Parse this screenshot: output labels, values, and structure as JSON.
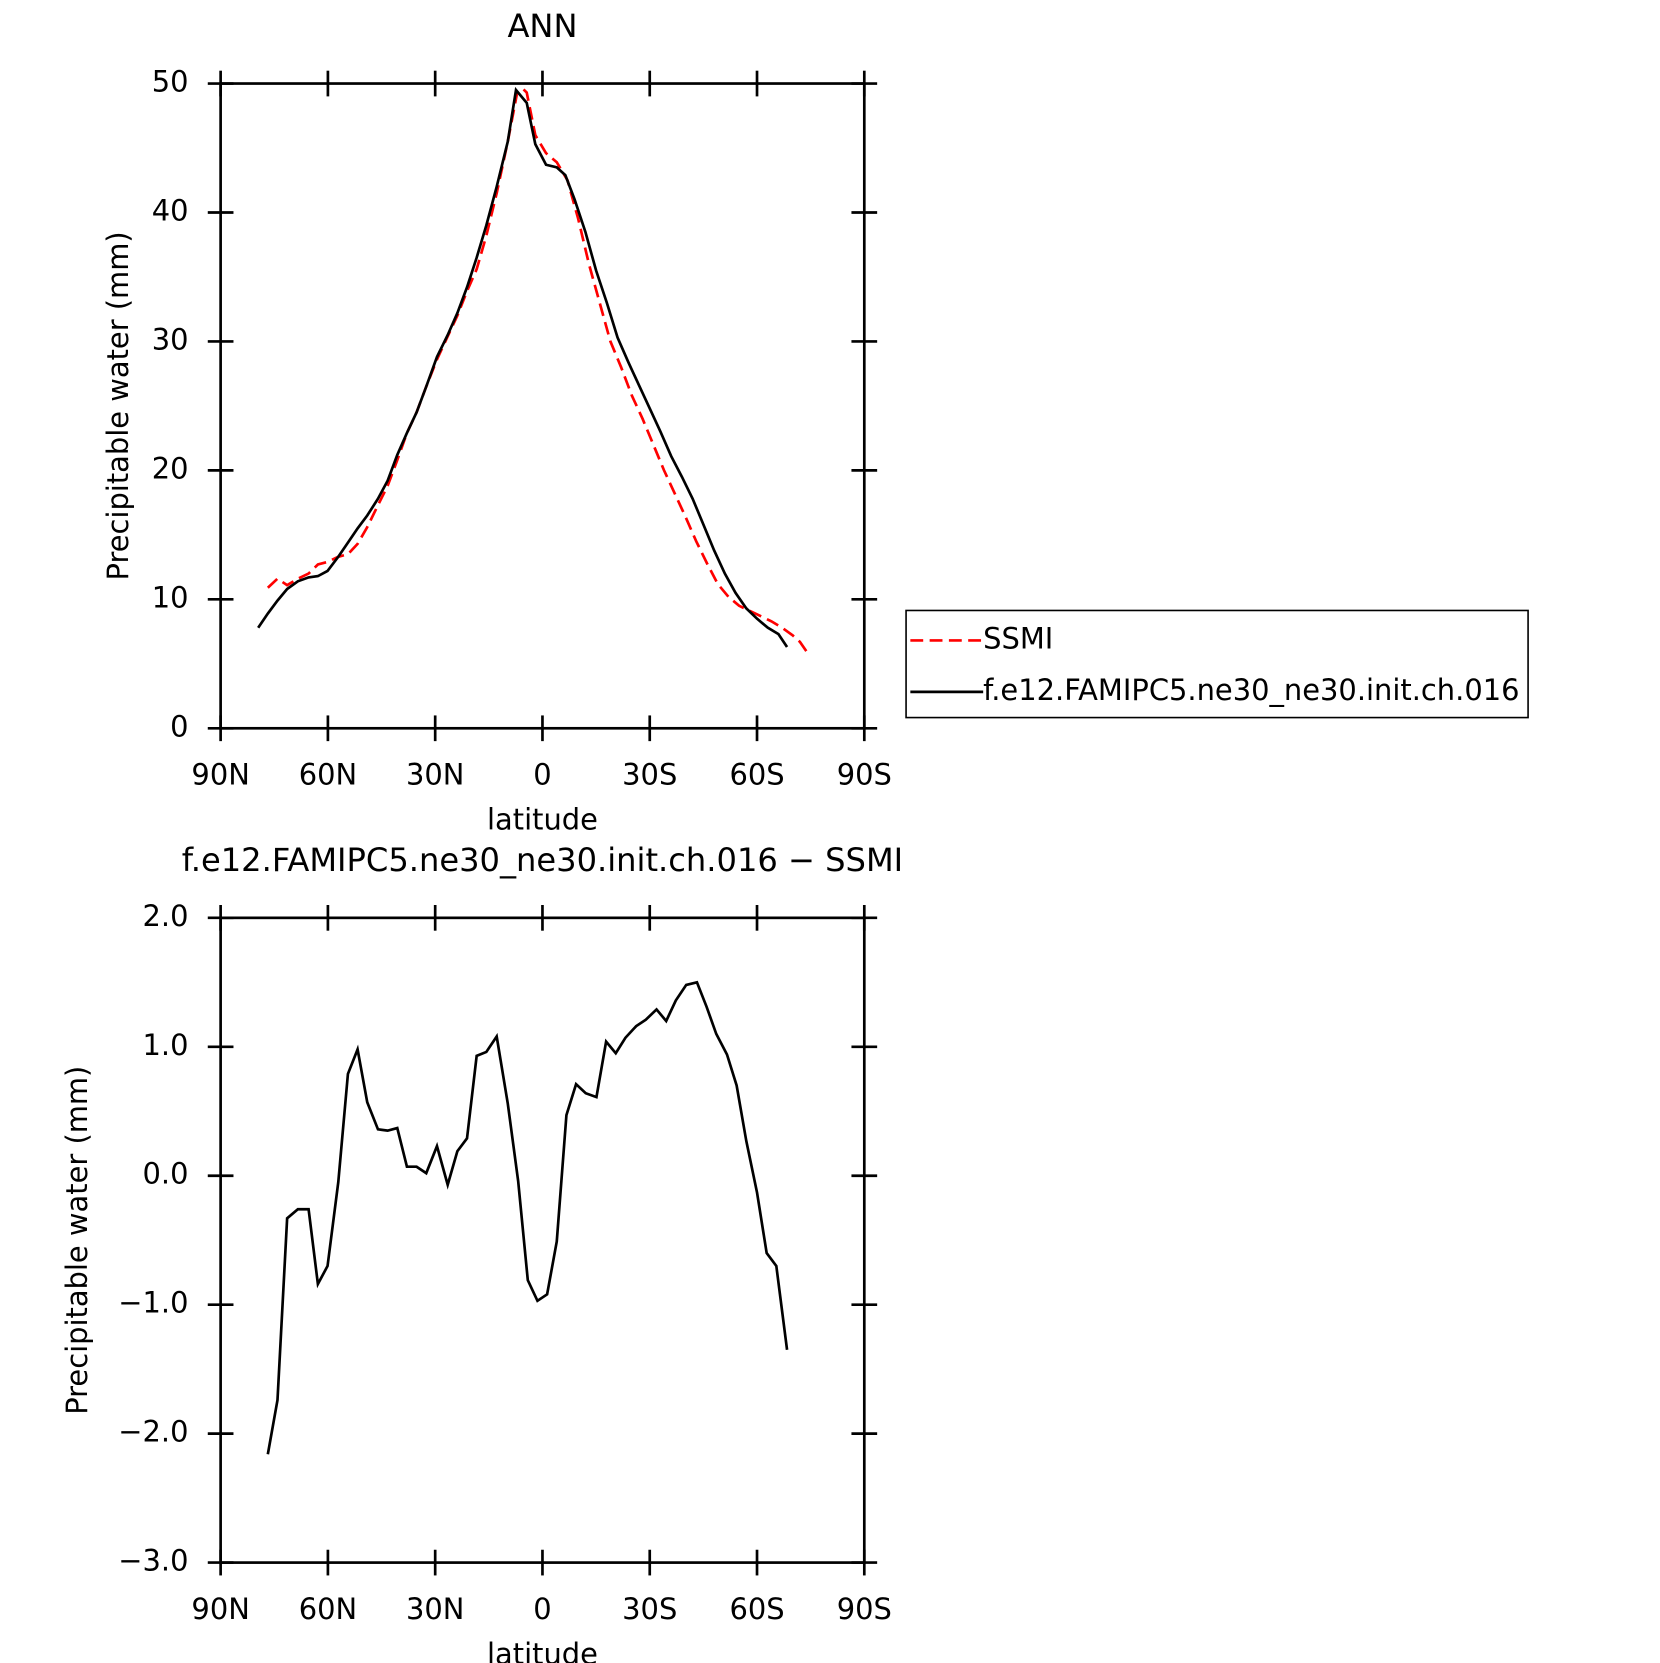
{
  "chart_data": [
    {
      "type": "line",
      "title": "ANN",
      "xlabel": "latitude",
      "ylabel": "Precipitable water (mm)",
      "xlim": [
        90,
        -90
      ],
      "xticks": [
        {
          "value": 90,
          "label": "90N"
        },
        {
          "value": 60,
          "label": "60N"
        },
        {
          "value": 30,
          "label": "30N"
        },
        0,
        {
          "value": -30,
          "label": "30S"
        },
        {
          "value": -60,
          "label": "60S"
        },
        {
          "value": -90,
          "label": "90S"
        }
      ],
      "ylim": [
        0,
        50
      ],
      "yticks": [
        0,
        10,
        20,
        30,
        40,
        50
      ],
      "legend": "right",
      "series": [
        {
          "name": "SSMI",
          "color": "#ff0000",
          "style": "dashed",
          "x": [
            76.8,
            74.1,
            71.4,
            68.4,
            65.4,
            62.8,
            60.1,
            57.1,
            54.4,
            51.7,
            49,
            46,
            43.3,
            40.6,
            37.9,
            35.2,
            32.5,
            29.5,
            26.5,
            23.8,
            21.1,
            18.4,
            15.7,
            12.8,
            9.7,
            7,
            5.5,
            4.4,
            2,
            -1,
            -4,
            -7,
            -10,
            -13,
            -16,
            -19,
            -22,
            -25,
            -28,
            -31,
            -34,
            -37,
            -40,
            -43,
            -46,
            -49,
            -52,
            -55,
            -58,
            -61,
            -64,
            -67,
            -70,
            -72,
            -74
          ],
          "values": [
            10.9,
            11.6,
            11.1,
            11.6,
            12.0,
            12.7,
            12.9,
            13.3,
            13.5,
            14.3,
            15.6,
            17.3,
            18.8,
            20.8,
            22.9,
            24.5,
            26.5,
            28.6,
            30.4,
            32,
            33.9,
            35.6,
            38.2,
            41.5,
            45.5,
            49.4,
            49.6,
            49.3,
            46,
            44.6,
            43.9,
            42.5,
            39.5,
            36,
            33,
            30,
            28,
            25.8,
            24,
            22,
            20,
            18.2,
            16.4,
            14.5,
            12.8,
            11.2,
            10.2,
            9.5,
            9.1,
            8.7,
            8.3,
            7.8,
            7.2,
            6.7,
            5.9
          ]
        },
        {
          "name": "f.e12.FAMIPC5.ne30_ne30.init.ch.016",
          "color": "#000000",
          "style": "solid",
          "x": [
            79.5,
            76.8,
            74.1,
            71.4,
            68.4,
            65.4,
            62.8,
            60.1,
            57.1,
            54.4,
            51.7,
            49,
            46,
            43.3,
            40.6,
            37.9,
            35.2,
            32.5,
            29.5,
            26.5,
            23.8,
            21.1,
            18.4,
            15.7,
            12.8,
            9.7,
            7.4,
            4.4,
            2,
            -1,
            -4,
            -6.4,
            -9,
            -12,
            -15,
            -18,
            -21,
            -24,
            -27,
            -30,
            -33,
            -36,
            -39,
            -42,
            -45,
            -48,
            -51,
            -54,
            -57,
            -60,
            -63,
            -66,
            -68.4
          ],
          "values": [
            7.8,
            8.9,
            9.9,
            10.8,
            11.4,
            11.7,
            11.8,
            12.2,
            13.3,
            14.4,
            15.5,
            16.5,
            17.8,
            19.2,
            21.2,
            22.9,
            24.5,
            26.5,
            28.8,
            30.5,
            32.2,
            34.2,
            36.5,
            39,
            42,
            45.5,
            49.5,
            48.5,
            45.3,
            43.7,
            43.5,
            42.9,
            41,
            38.5,
            35.5,
            33,
            30.3,
            28.4,
            26.6,
            24.8,
            23,
            21.1,
            19.5,
            17.8,
            15.8,
            13.8,
            12,
            10.5,
            9.3,
            8.5,
            7.8,
            7.3,
            6.3
          ]
        }
      ]
    },
    {
      "type": "line",
      "title": "f.e12.FAMIPC5.ne30_ne30.init.ch.016 − SSMI",
      "xlabel": "latitude",
      "ylabel": "Precipitable water (mm)",
      "xlim": [
        90,
        -90
      ],
      "xticks": [
        {
          "value": 90,
          "label": "90N"
        },
        {
          "value": 60,
          "label": "60N"
        },
        {
          "value": 30,
          "label": "30N"
        },
        0,
        {
          "value": -30,
          "label": "30S"
        },
        {
          "value": -60,
          "label": "60S"
        },
        {
          "value": -90,
          "label": "90S"
        }
      ],
      "ylim": [
        -3,
        2
      ],
      "yticks": [
        {
          "value": -3,
          "label": "−3.0"
        },
        {
          "value": -2,
          "label": "−2.0"
        },
        {
          "value": -1,
          "label": "−1.0"
        },
        {
          "value": 0,
          "label": "0.0"
        },
        {
          "value": 1,
          "label": "1.0"
        },
        {
          "value": 2,
          "label": "2.0"
        }
      ],
      "series": [
        {
          "color": "#000000",
          "style": "solid",
          "x": [
            76.8,
            74.1,
            71.4,
            68.4,
            65.4,
            62.8,
            60.1,
            57.1,
            54.4,
            51.7,
            49,
            46,
            43.3,
            40.6,
            37.9,
            35.2,
            32.5,
            29.5,
            26.5,
            23.8,
            21.1,
            18.4,
            15.7,
            12.8,
            9.7,
            6.8,
            4.1,
            1.4,
            -1.3,
            -4,
            -6.7,
            -9.4,
            -12.1,
            -15.1,
            -17.8,
            -20.5,
            -23.2,
            -26.2,
            -28.9,
            -31.9,
            -34.6,
            -37.3,
            -40.2,
            -43.2,
            -45.9,
            -48.6,
            -51.6,
            -54.3,
            -57,
            -60,
            -62.7,
            -65.4,
            -68.4
          ],
          "values": [
            -2.16,
            -1.74,
            -0.33,
            -0.26,
            -0.26,
            -0.84,
            -0.7,
            -0.05,
            0.79,
            0.98,
            0.57,
            0.36,
            0.35,
            0.37,
            0.07,
            0.07,
            0.02,
            0.23,
            -0.07,
            0.19,
            0.29,
            0.93,
            0.96,
            1.08,
            0.56,
            -0.04,
            -0.81,
            -0.97,
            -0.92,
            -0.51,
            0.47,
            0.71,
            0.64,
            0.61,
            1.04,
            0.95,
            1.07,
            1.16,
            1.21,
            1.29,
            1.2,
            1.36,
            1.48,
            1.5,
            1.31,
            1.1,
            0.94,
            0.7,
            0.27,
            -0.13,
            -0.6,
            -0.7,
            -1.35
          ]
        }
      ]
    }
  ]
}
